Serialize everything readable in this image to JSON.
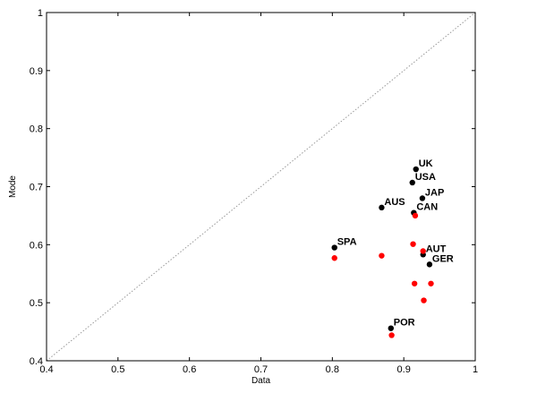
{
  "chart_data": {
    "type": "scatter",
    "xlabel": "Data",
    "ylabel": "Mode",
    "xlim": [
      0.4,
      1.0
    ],
    "ylim": [
      0.4,
      1.0
    ],
    "xticks": [
      "0.4",
      "0.5",
      "0.6",
      "0.7",
      "0.8",
      "0.9",
      "1"
    ],
    "yticks": [
      "0.4",
      "0.5",
      "0.6",
      "0.7",
      "0.8",
      "0.9",
      "1"
    ],
    "grid": false,
    "reference_line": {
      "from": [
        0.4,
        0.4
      ],
      "to": [
        1.0,
        1.0
      ],
      "style": "dotted",
      "color": "#999999"
    },
    "series": [
      {
        "color": "#000000",
        "points": [
          {
            "label": "UK",
            "x": 0.917,
            "y": 0.73
          },
          {
            "label": "USA",
            "x": 0.912,
            "y": 0.707
          },
          {
            "label": "JAP",
            "x": 0.926,
            "y": 0.68
          },
          {
            "label": "AUS",
            "x": 0.869,
            "y": 0.664
          },
          {
            "label": "CAN",
            "x": 0.914,
            "y": 0.655
          },
          {
            "label": "SPA",
            "x": 0.803,
            "y": 0.595
          },
          {
            "label": "AUT",
            "x": 0.927,
            "y": 0.583
          },
          {
            "label": "GER",
            "x": 0.936,
            "y": 0.566
          },
          {
            "label": "POR",
            "x": 0.882,
            "y": 0.456
          }
        ]
      },
      {
        "color": "#ff0000",
        "points": [
          {
            "x": 0.916,
            "y": 0.65
          },
          {
            "x": 0.913,
            "y": 0.601
          },
          {
            "x": 0.927,
            "y": 0.589
          },
          {
            "x": 0.869,
            "y": 0.581
          },
          {
            "x": 0.803,
            "y": 0.577
          },
          {
            "x": 0.915,
            "y": 0.533
          },
          {
            "x": 0.938,
            "y": 0.533
          },
          {
            "x": 0.928,
            "y": 0.504
          },
          {
            "x": 0.883,
            "y": 0.444
          }
        ]
      }
    ]
  }
}
